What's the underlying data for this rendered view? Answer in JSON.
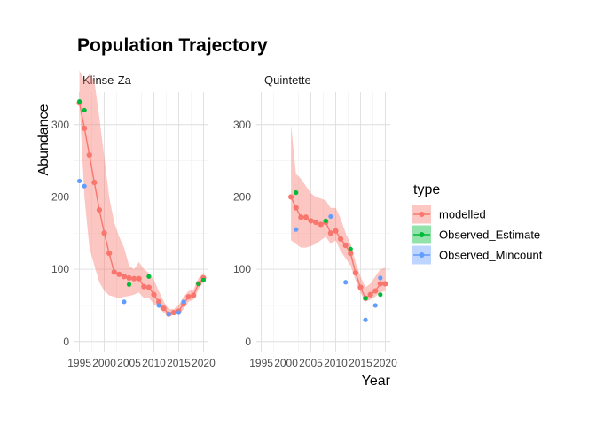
{
  "chart_data": {
    "type": "line",
    "title": "Population Trajectory",
    "xlabel": "Year",
    "ylabel": "Abundance",
    "legend": {
      "title": "type",
      "position": "right",
      "entries": [
        "modelled",
        "Observed_Estimate",
        "Observed_Mincount"
      ]
    },
    "colors": {
      "modelled": "#F8766D",
      "Observed_Estimate": "#00BA38",
      "Observed_Mincount": "#619CFF",
      "ribbon": "#F8766D"
    },
    "xlim": [
      1994,
      2021
    ],
    "ylim": [
      -15,
      345
    ],
    "x_ticks": [
      "1995",
      "2000",
      "2005",
      "2010",
      "2015",
      "2020"
    ],
    "y_ticks": [
      "0",
      "100",
      "200",
      "300"
    ],
    "grid": true,
    "facets": [
      {
        "name": "Klinse-Za",
        "modelled": {
          "x": [
            1995,
            1996,
            1997,
            1998,
            1999,
            2000,
            2001,
            2002,
            2003,
            2004,
            2005,
            2006,
            2007,
            2008,
            2009,
            2010,
            2011,
            2012,
            2013,
            2014,
            2015,
            2016,
            2017,
            2018,
            2019,
            2020
          ],
          "y": [
            330,
            295,
            258,
            220,
            182,
            150,
            122,
            96,
            93,
            90,
            88,
            87,
            87,
            76,
            75,
            65,
            55,
            46,
            38,
            40,
            42,
            52,
            62,
            64,
            80,
            88
          ],
          "lower": [
            330,
            200,
            130,
            105,
            82,
            70,
            64,
            62,
            60,
            62,
            63,
            65,
            68,
            60,
            60,
            52,
            47,
            40,
            35,
            37,
            38,
            45,
            55,
            58,
            72,
            82
          ],
          "upper": [
            375,
            360,
            370,
            360,
            310,
            255,
            200,
            165,
            145,
            130,
            105,
            100,
            110,
            100,
            95,
            85,
            70,
            55,
            45,
            45,
            50,
            62,
            70,
            72,
            88,
            95
          ]
        },
        "observed_estimate": {
          "x": [
            1995,
            1996,
            2005,
            2009,
            2019,
            2020
          ],
          "y": [
            332,
            320,
            79,
            90,
            80,
            85
          ]
        },
        "observed_mincount": {
          "x": [
            1995,
            1996,
            2004,
            2011,
            2013,
            2015,
            2016
          ],
          "y": [
            222,
            215,
            55,
            50,
            38,
            40,
            55
          ]
        }
      },
      {
        "name": "Quintette",
        "modelled": {
          "x": [
            2001,
            2002,
            2003,
            2004,
            2005,
            2006,
            2007,
            2008,
            2009,
            2010,
            2011,
            2012,
            2013,
            2014,
            2015,
            2016,
            2017,
            2018,
            2019,
            2020
          ],
          "y": [
            200,
            185,
            172,
            172,
            167,
            165,
            162,
            165,
            150,
            153,
            142,
            133,
            122,
            95,
            75,
            60,
            65,
            70,
            80,
            80
          ],
          "lower": [
            140,
            135,
            130,
            130,
            132,
            135,
            140,
            145,
            135,
            140,
            125,
            115,
            105,
            85,
            68,
            55,
            58,
            62,
            68,
            70
          ],
          "upper": [
            300,
            232,
            225,
            215,
            205,
            200,
            198,
            195,
            185,
            185,
            170,
            150,
            135,
            110,
            90,
            75,
            80,
            90,
            100,
            102
          ]
        },
        "observed_estimate": {
          "x": [
            2002,
            2008,
            2013,
            2016,
            2019
          ],
          "y": [
            206,
            167,
            128,
            60,
            65
          ]
        },
        "observed_mincount": {
          "x": [
            2002,
            2009,
            2012,
            2016,
            2018,
            2019
          ],
          "y": [
            155,
            173,
            82,
            30,
            50,
            88
          ]
        }
      }
    ]
  }
}
